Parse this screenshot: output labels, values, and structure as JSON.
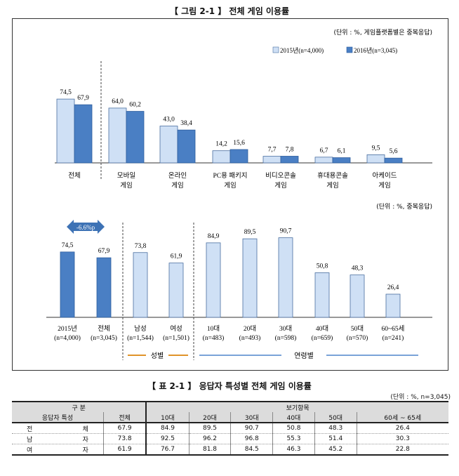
{
  "figure_caption": "【 그림 2-1 】 전체 게임 이용률",
  "table_caption": "【 표 2-1 】 응답자 특성별 전체 게임 이용률",
  "colors": {
    "light": "#cfe0f5",
    "dark": "#4a7fc4",
    "orange": "#e0932a",
    "blue_line": "#7aa3d8"
  },
  "chart_data": [
    {
      "type": "bar",
      "unit_note": "(단위 : %, 게임플랫폼별은 중복응답)",
      "categories": [
        "전체",
        "모바일\n게임",
        "온라인\n게임",
        "PC용 패키지\n게임",
        "비디오콘솔\n게임",
        "휴대용콘솔\n게임",
        "아케이드\n게임"
      ],
      "series": [
        {
          "name": "2015년(n=4,000)",
          "values": [
            74.5,
            64.0,
            43.0,
            14.2,
            7.7,
            6.7,
            9.5
          ],
          "labels": [
            "74,5",
            "64,0",
            "43,0",
            "14,2",
            "7,7",
            "6,7",
            "9,5"
          ]
        },
        {
          "name": "2016년(n=3,045)",
          "values": [
            67.9,
            60.2,
            38.4,
            15.6,
            7.8,
            6.1,
            5.6
          ],
          "labels": [
            "67,9",
            "60,2",
            "38,4",
            "15,6",
            "7,8",
            "6,1",
            "5,6"
          ]
        }
      ]
    },
    {
      "type": "bar",
      "unit_note": "(단위 : %, 중복응답)",
      "categories": [
        "2015년\n(n=4,000)",
        "전체\n(n=3,045)",
        "남성\n(n=1,544)",
        "여성\n(n=1,501)",
        "10대\n(n=483)",
        "20대\n(n=493)",
        "30대\n(n=598)",
        "40대\n(n=659)",
        "50대\n(n=570)",
        "60~65세\n(n=241)"
      ],
      "values": [
        74.5,
        67.9,
        73.8,
        61.9,
        84.9,
        89.5,
        90.7,
        50.8,
        48.3,
        26.4
      ],
      "labels": [
        "74,5",
        "67,9",
        "73,8",
        "61,9",
        "84,9",
        "89,5",
        "90,7",
        "50,8",
        "48,3",
        "26,4"
      ],
      "annotation": "-6.6%p",
      "groups": [
        "성별",
        "연령별"
      ]
    }
  ],
  "table": {
    "unit": "(단위 : %, n=3,045)",
    "header1": [
      "구   분",
      "보기항목"
    ],
    "header2": [
      "응답자 특성",
      "전체",
      "10대",
      "20대",
      "30대",
      "40대",
      "50대",
      "60세 ~ 65세"
    ],
    "rows": [
      {
        "label": [
          "전",
          "체"
        ],
        "values": [
          "67.9",
          "84.9",
          "89.5",
          "90.7",
          "50.8",
          "48.3",
          "26.4"
        ]
      },
      {
        "label": [
          "남",
          "자"
        ],
        "values": [
          "73.8",
          "92.5",
          "96.2",
          "96.8",
          "55.3",
          "51.4",
          "30.3"
        ]
      },
      {
        "label": [
          "여",
          "자"
        ],
        "values": [
          "61.9",
          "76.7",
          "81.8",
          "84.5",
          "46.3",
          "45.2",
          "22.8"
        ]
      }
    ]
  }
}
